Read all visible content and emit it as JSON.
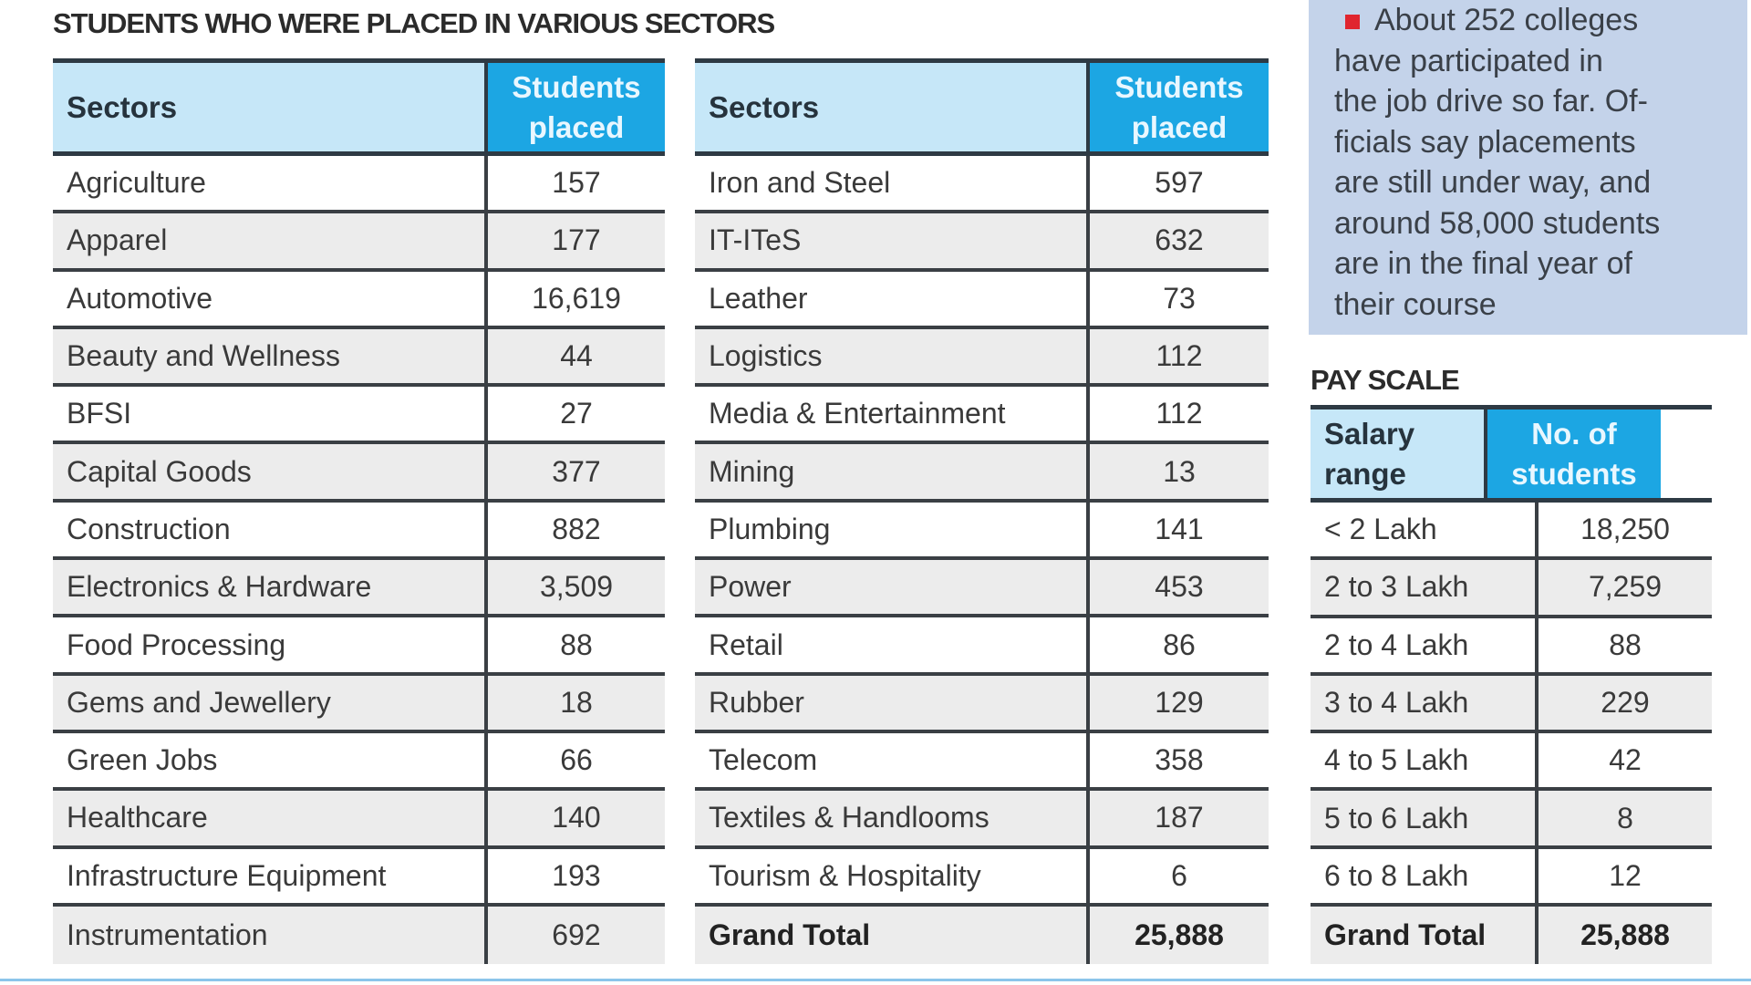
{
  "main_title": "STUDENTS WHO WERE PLACED IN VARIOUS SECTORS",
  "colors": {
    "header_light": "#c6e7f8",
    "header_accent": "#1ca6e3",
    "note_bg": "#c4d3ea",
    "bullet": "#e0252f"
  },
  "sectors_table_1": {
    "headers": [
      "Sectors",
      "Students placed"
    ],
    "rows": [
      [
        "Agriculture",
        "157"
      ],
      [
        "Apparel",
        "177"
      ],
      [
        "Automotive",
        "16,619"
      ],
      [
        "Beauty and Wellness",
        "44"
      ],
      [
        "BFSI",
        "27"
      ],
      [
        "Capital Goods",
        "377"
      ],
      [
        "Construction",
        "882"
      ],
      [
        "Electronics & Hardware",
        "3,509"
      ],
      [
        "Food Processing",
        "88"
      ],
      [
        "Gems and Jewellery",
        "18"
      ],
      [
        "Green Jobs",
        "66"
      ],
      [
        "Healthcare",
        "140"
      ],
      [
        "Infrastructure Equipment",
        "193"
      ],
      [
        "Instrumentation",
        "692"
      ]
    ]
  },
  "sectors_table_2": {
    "headers": [
      "Sectors",
      "Students placed"
    ],
    "rows": [
      [
        "Iron and Steel",
        "597"
      ],
      [
        "IT-ITeS",
        "632"
      ],
      [
        "Leather",
        "73"
      ],
      [
        "Logistics",
        "112"
      ],
      [
        "Media & Entertainment",
        "112"
      ],
      [
        "Mining",
        "13"
      ],
      [
        "Plumbing",
        "141"
      ],
      [
        "Power",
        "453"
      ],
      [
        "Retail",
        "86"
      ],
      [
        "Rubber",
        "129"
      ],
      [
        "Telecom",
        "358"
      ],
      [
        "Textiles & Handlooms",
        "187"
      ],
      [
        "Tourism & Hospitality",
        "6"
      ],
      [
        "Grand Total",
        "25,888"
      ]
    ]
  },
  "note": {
    "icon": "red-square-bullet",
    "lines": [
      "About 252 colleges",
      "have participated in",
      "the job drive so far. Of-",
      "ficials say placements",
      "are still under way, and",
      "around 58,000 students",
      "are in the final year of",
      "their course"
    ]
  },
  "pay_scale": {
    "title": "PAY SCALE",
    "headers": [
      "Salary range",
      "No. of students"
    ],
    "rows": [
      [
        "< 2 Lakh",
        "18,250"
      ],
      [
        "2 to 3 Lakh",
        "7,259"
      ],
      [
        "2 to 4 Lakh",
        "88"
      ],
      [
        "3 to 4 Lakh",
        "229"
      ],
      [
        "4 to 5 Lakh",
        "42"
      ],
      [
        "5 to 6 Lakh",
        "8"
      ],
      [
        "6 to 8 Lakh",
        "12"
      ],
      [
        "Grand Total",
        "25,888"
      ]
    ]
  }
}
